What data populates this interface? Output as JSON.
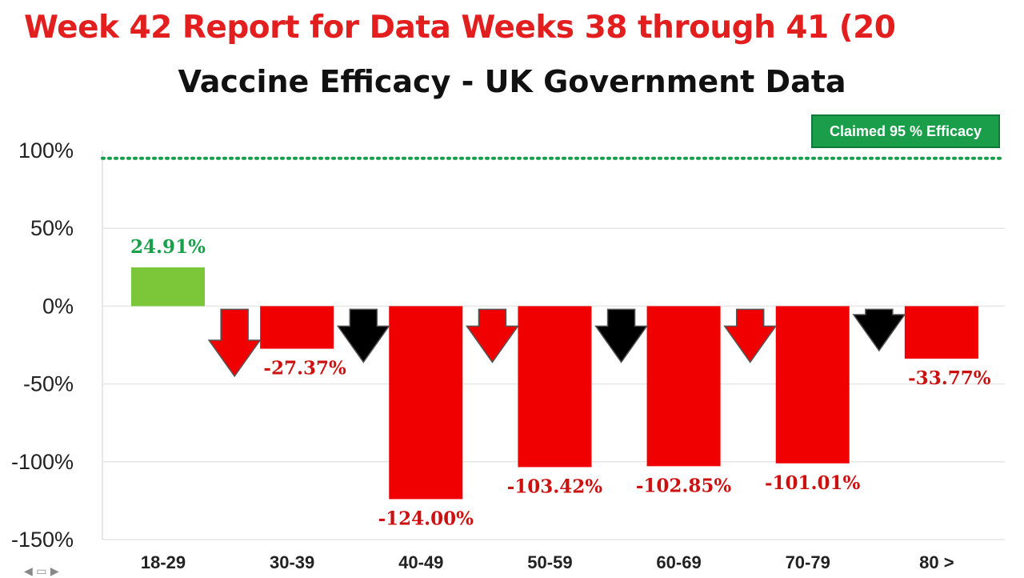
{
  "header": {
    "title": "Week 42 Report for  Data Weeks 38 through 41 (20",
    "subtitle": "Vaccine Efficacy - UK Government Data",
    "badge": "Claimed 95 % Efficacy"
  },
  "colors": {
    "title": "#e21e1e",
    "positive_bar": "#7cc63a",
    "negative_bar": "#f00000",
    "positive_label": "#1aa04a",
    "negative_label": "#cc1111",
    "claimed_line": "#1a9e4a",
    "arrow_red": "#f00000",
    "arrow_black": "#000000"
  },
  "chart_data": {
    "type": "bar",
    "title": "Vaccine Efficacy - UK Government Data",
    "categories": [
      "18-29",
      "30-39",
      "40-49",
      "50-59",
      "60-69",
      "70-79",
      "80 >"
    ],
    "values": [
      24.91,
      -27.37,
      -124.0,
      -103.42,
      -102.85,
      -101.01,
      -33.77
    ],
    "value_labels": [
      "24.91%",
      "-27.37%",
      "-124.00%",
      "-103.42%",
      "-102.85%",
      "-101.01%",
      "-33.77%"
    ],
    "ylim": [
      -150,
      100
    ],
    "yticks": [
      100,
      50,
      0,
      -50,
      -100,
      -150
    ],
    "ytick_labels": [
      "100%",
      "50%",
      "0%",
      "-50%",
      "-100%",
      "-150%"
    ],
    "reference_line": {
      "value": 95,
      "label": "Claimed 95 % Efficacy",
      "style": "dotted"
    },
    "arrows": [
      "red",
      "black",
      "red",
      "black",
      "red",
      "black"
    ],
    "grid": true
  }
}
